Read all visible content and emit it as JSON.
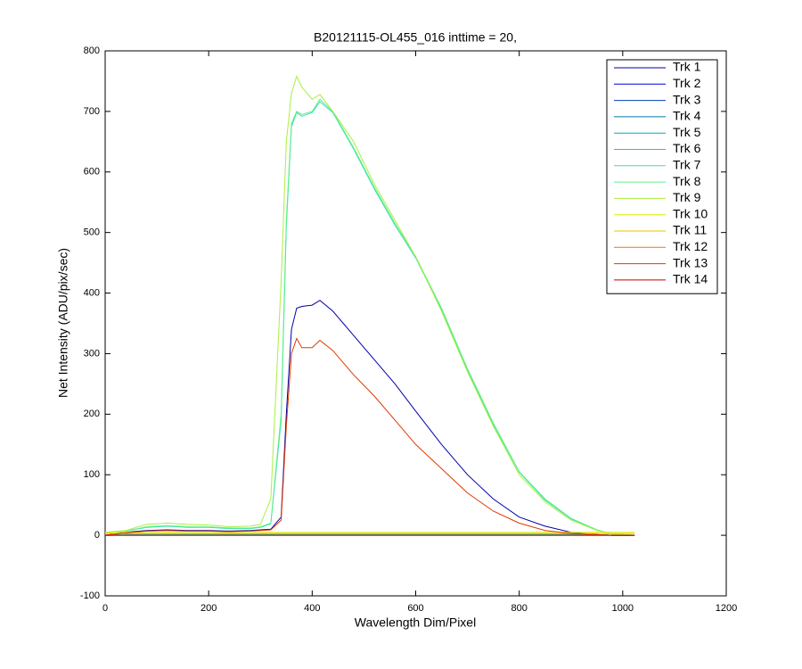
{
  "chart_data": {
    "type": "line",
    "title": "B20121115-OL455_016 inttime = 20,",
    "x_label": "Wavelength Dim/Pixel",
    "y_label": "Net Intensity (ADU/pix/sec)",
    "x": [
      0,
      40,
      80,
      120,
      160,
      200,
      240,
      280,
      300,
      320,
      340,
      350,
      360,
      370,
      380,
      400,
      415,
      440,
      480,
      520,
      560,
      600,
      650,
      700,
      750,
      800,
      850,
      900,
      950,
      980,
      1000,
      1023
    ],
    "xlim": [
      0,
      1200
    ],
    "xticks": [
      0,
      200,
      400,
      600,
      800,
      1000,
      1200
    ],
    "ylim": [
      -100,
      800
    ],
    "yticks": [
      -100,
      0,
      100,
      200,
      300,
      400,
      500,
      600,
      700,
      800
    ],
    "legend": "northeast",
    "series": [
      {
        "name": "Trk 1",
        "color": "#0000a8",
        "values": [
          0,
          5,
          8,
          9,
          8,
          8,
          7,
          8,
          9,
          10,
          30,
          200,
          340,
          375,
          378,
          380,
          388,
          370,
          330,
          290,
          250,
          205,
          150,
          100,
          60,
          30,
          15,
          5,
          1,
          0,
          0,
          0
        ]
      },
      {
        "name": "Trk 2",
        "color": "#0000d8",
        "values": [
          0,
          1,
          1,
          1,
          1,
          1,
          1,
          1,
          1,
          1,
          1,
          1,
          1,
          1,
          1,
          1,
          1,
          1,
          1,
          1,
          1,
          1,
          1,
          1,
          1,
          1,
          1,
          1,
          1,
          0,
          0,
          0
        ]
      },
      {
        "name": "Trk 3",
        "color": "#0040b0",
        "values": [
          0,
          1,
          1,
          1,
          1,
          1,
          1,
          1,
          1,
          1,
          1,
          1,
          1,
          1,
          1,
          1,
          1,
          1,
          1,
          1,
          1,
          1,
          1,
          1,
          1,
          1,
          1,
          1,
          1,
          0,
          0,
          0
        ]
      },
      {
        "name": "Trk 4",
        "color": "#0078a8",
        "values": [
          0,
          1,
          1,
          1,
          1,
          1,
          1,
          1,
          1,
          1,
          1,
          1,
          1,
          1,
          1,
          1,
          1,
          1,
          1,
          1,
          1,
          1,
          1,
          1,
          1,
          1,
          1,
          1,
          1,
          0,
          0,
          0
        ]
      },
      {
        "name": "Trk 5",
        "color": "#00a8c0",
        "values": [
          0,
          1,
          1,
          1,
          1,
          1,
          1,
          1,
          1,
          1,
          1,
          1,
          1,
          1,
          1,
          1,
          1,
          1,
          1,
          1,
          1,
          1,
          1,
          1,
          1,
          1,
          1,
          1,
          1,
          0,
          0,
          0
        ]
      },
      {
        "name": "Trk 6",
        "color": "#10c8c8",
        "values": [
          0,
          1,
          1,
          1,
          1,
          1,
          1,
          1,
          1,
          1,
          1,
          1,
          1,
          1,
          1,
          1,
          1,
          1,
          1,
          1,
          1,
          1,
          1,
          1,
          1,
          1,
          1,
          1,
          1,
          0,
          0,
          0
        ]
      },
      {
        "name": "Trk 7",
        "color": "#30e0c0",
        "values": [
          4,
          7,
          13,
          15,
          13,
          13,
          11,
          11,
          13,
          19,
          190,
          510,
          675,
          698,
          692,
          698,
          716,
          698,
          638,
          572,
          512,
          458,
          372,
          272,
          183,
          104,
          58,
          27,
          9,
          2,
          1,
          0
        ]
      },
      {
        "name": "Trk 8",
        "color": "#60f080",
        "values": [
          4,
          7,
          14,
          16,
          14,
          14,
          12,
          12,
          14,
          20,
          200,
          520,
          680,
          700,
          695,
          700,
          720,
          700,
          640,
          575,
          515,
          460,
          375,
          275,
          185,
          105,
          60,
          28,
          9,
          2,
          1,
          0
        ]
      },
      {
        "name": "Trk 9",
        "color": "#a8f040",
        "values": [
          5,
          8,
          18,
          20,
          18,
          17,
          14,
          15,
          18,
          60,
          420,
          650,
          730,
          758,
          740,
          720,
          728,
          700,
          650,
          580,
          520,
          460,
          370,
          270,
          180,
          100,
          55,
          25,
          8,
          2,
          1,
          0
        ]
      },
      {
        "name": "Trk 10",
        "color": "#d8f000",
        "values": [
          5,
          5,
          5,
          5,
          5,
          5,
          5,
          5,
          5,
          5,
          5,
          5,
          5,
          5,
          5,
          5,
          5,
          5,
          5,
          5,
          5,
          5,
          5,
          5,
          5,
          5,
          5,
          5,
          5,
          5,
          5,
          5
        ]
      },
      {
        "name": "Trk 11",
        "color": "#f0c000",
        "values": [
          3,
          3,
          3,
          3,
          3,
          3,
          3,
          3,
          3,
          3,
          3,
          3,
          3,
          3,
          3,
          3,
          3,
          3,
          3,
          3,
          3,
          3,
          3,
          3,
          3,
          3,
          3,
          3,
          3,
          3,
          3,
          3
        ]
      },
      {
        "name": "Trk 12",
        "color": "#f07800",
        "values": [
          0,
          0,
          0,
          0,
          0,
          0,
          0,
          0,
          0,
          0,
          0,
          0,
          0,
          0,
          0,
          0,
          0,
          0,
          0,
          0,
          0,
          0,
          0,
          0,
          0,
          0,
          0,
          0,
          0,
          0,
          0,
          0
        ]
      },
      {
        "name": "Trk 13",
        "color": "#e03800",
        "values": [
          0,
          4,
          7,
          8,
          7,
          7,
          6,
          7,
          8,
          9,
          25,
          180,
          300,
          325,
          310,
          310,
          322,
          305,
          265,
          230,
          190,
          150,
          110,
          70,
          40,
          20,
          8,
          3,
          1,
          0,
          0,
          0
        ]
      },
      {
        "name": "Trk 14",
        "color": "#c00000",
        "values": [
          0,
          0,
          0,
          0,
          0,
          0,
          0,
          0,
          0,
          0,
          0,
          0,
          0,
          0,
          0,
          0,
          0,
          0,
          0,
          0,
          0,
          0,
          0,
          0,
          0,
          0,
          0,
          0,
          0,
          0,
          0,
          0
        ]
      }
    ]
  }
}
